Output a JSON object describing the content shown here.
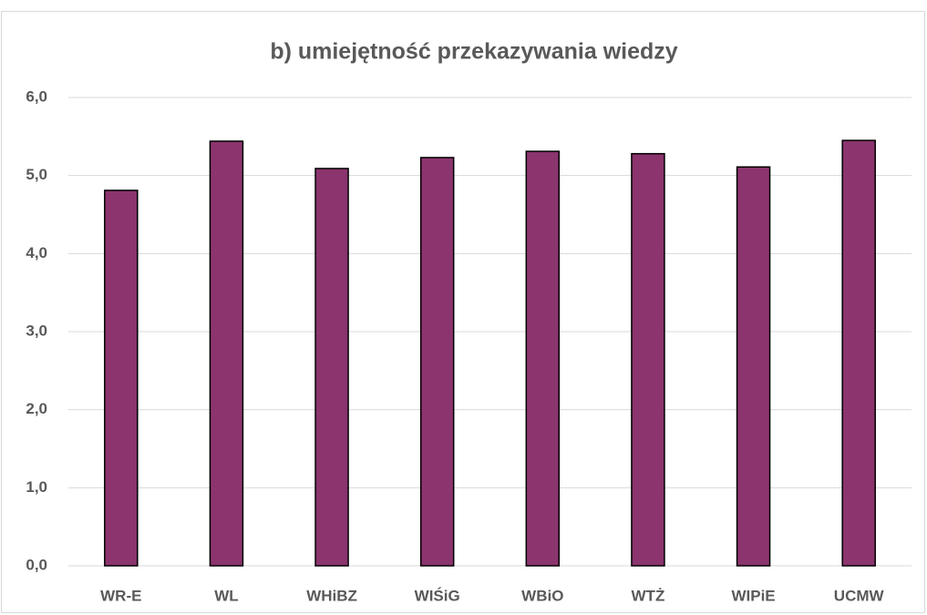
{
  "chart_data": {
    "type": "bar",
    "title": "b) umiejętność przekazywania wiedzy",
    "categories": [
      "WR-E",
      "WL",
      "WHiBZ",
      "WIŚiG",
      "WBiO",
      "WTŻ",
      "WIPiE",
      "UCMW"
    ],
    "values": [
      4.81,
      5.44,
      5.09,
      5.23,
      5.31,
      5.28,
      5.11,
      5.45
    ],
    "color": "#8b346d",
    "ylim": [
      0,
      6
    ],
    "yticks": [
      {
        "value": 0,
        "label": "0,0"
      },
      {
        "value": 1,
        "label": "1,0"
      },
      {
        "value": 2,
        "label": "2,0"
      },
      {
        "value": 3,
        "label": "3,0"
      },
      {
        "value": 4,
        "label": "4,0"
      },
      {
        "value": 5,
        "label": "5,0"
      },
      {
        "value": 6,
        "label": "6,0"
      }
    ],
    "grid": true
  }
}
